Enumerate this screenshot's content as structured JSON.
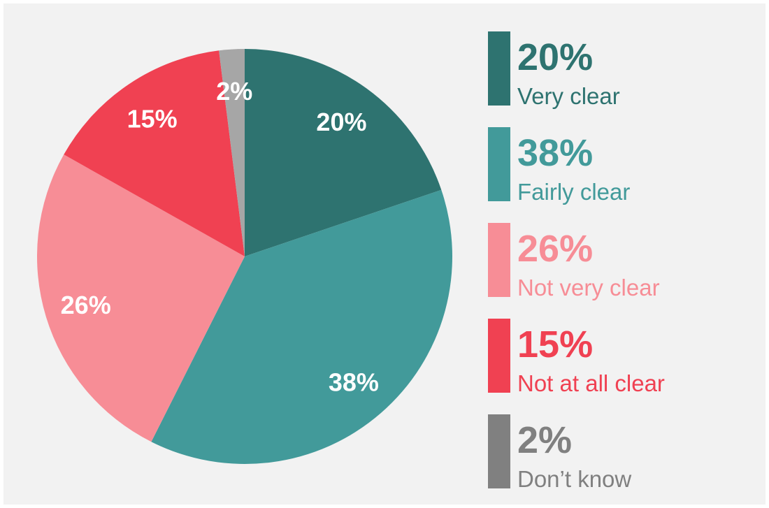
{
  "chart_data": {
    "type": "pie",
    "categories": [
      "Very clear",
      "Fairly clear",
      "Not very clear",
      "Not at all clear",
      "Don’t know"
    ],
    "values": [
      20,
      38,
      26,
      15,
      2
    ],
    "value_labels": [
      "20%",
      "38%",
      "26%",
      "15%",
      "2%"
    ],
    "colors": [
      "#2e7370",
      "#429a9a",
      "#f78d96",
      "#f04152",
      "#a6a6a6"
    ],
    "legend_colors": [
      "#2e7370",
      "#429a9a",
      "#f78d96",
      "#f04152",
      "#808080"
    ]
  }
}
